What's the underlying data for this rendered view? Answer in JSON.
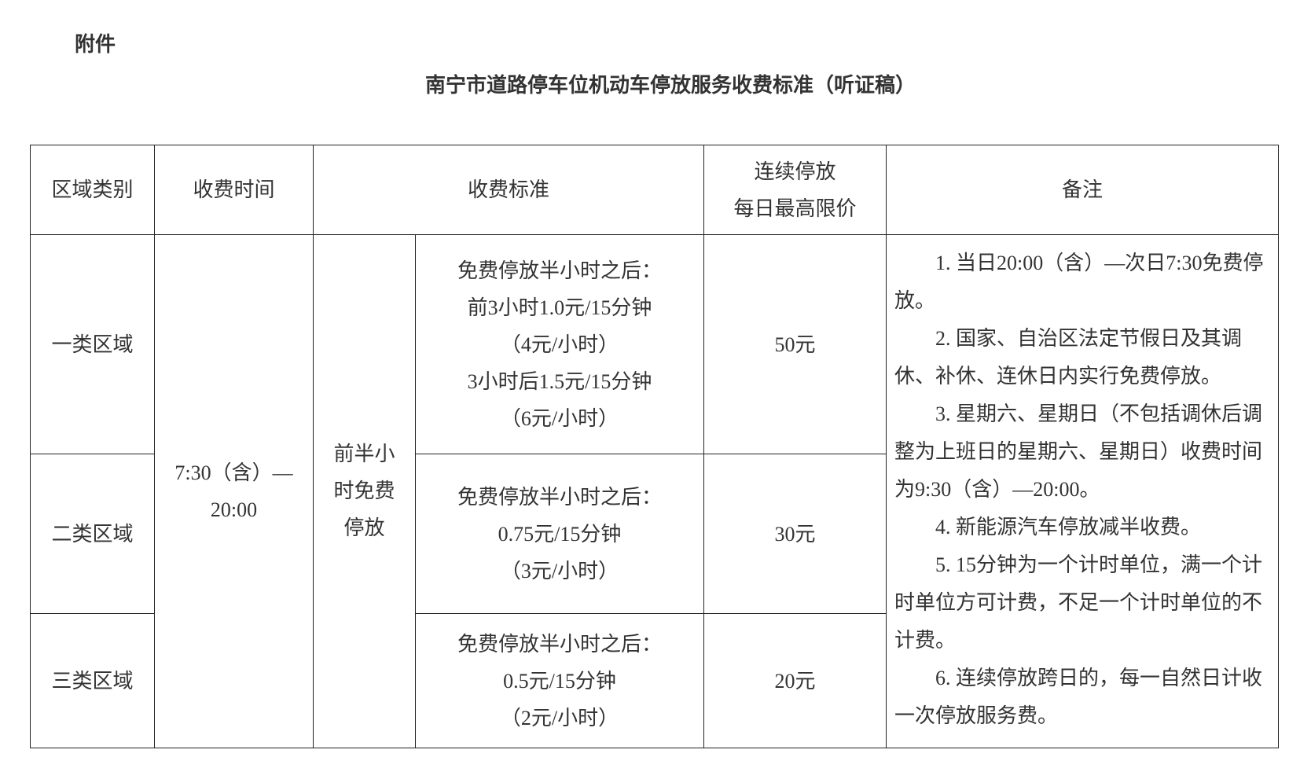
{
  "attachment_label": "附件",
  "title": "南宁市道路停车位机动车停放服务收费标准（听证稿）",
  "table": {
    "headers": {
      "zone": "区域类别",
      "time": "收费时间",
      "standard": "收费标准",
      "cap_line1": "连续停放",
      "cap_line2": "每日最高限价",
      "remarks": "备注"
    },
    "charge_time_line1": "7:30（含）—",
    "charge_time_line2": "20:00",
    "free_period_line1": "前半小",
    "free_period_line2": "时免费",
    "free_period_line3": "停放",
    "rows": [
      {
        "zone": "一类区域",
        "standard_lines": [
          "免费停放半小时之后：",
          "前3小时1.0元/15分钟",
          "（4元/小时）",
          "3小时后1.5元/15分钟",
          "（6元/小时）"
        ],
        "cap": "50元"
      },
      {
        "zone": "二类区域",
        "standard_lines": [
          "免费停放半小时之后：",
          "0.75元/15分钟",
          "（3元/小时）"
        ],
        "cap": "30元"
      },
      {
        "zone": "三类区域",
        "standard_lines": [
          "免费停放半小时之后：",
          "0.5元/15分钟",
          "（2元/小时）"
        ],
        "cap": "20元"
      }
    ],
    "remarks": [
      "1. 当日20:00（含）—次日7:30免费停放。",
      "2. 国家、自治区法定节假日及其调休、补休、连休日内实行免费停放。",
      "3. 星期六、星期日（不包括调休后调整为上班日的星期六、星期日）收费时间为9:30（含）—20:00。",
      "4. 新能源汽车停放减半收费。",
      "5. 15分钟为一个计时单位，满一个计时单位方可计费，不足一个计时单位的不计费。",
      "6. 连续停放跨日的，每一自然日计收一次停放服务费。"
    ]
  }
}
